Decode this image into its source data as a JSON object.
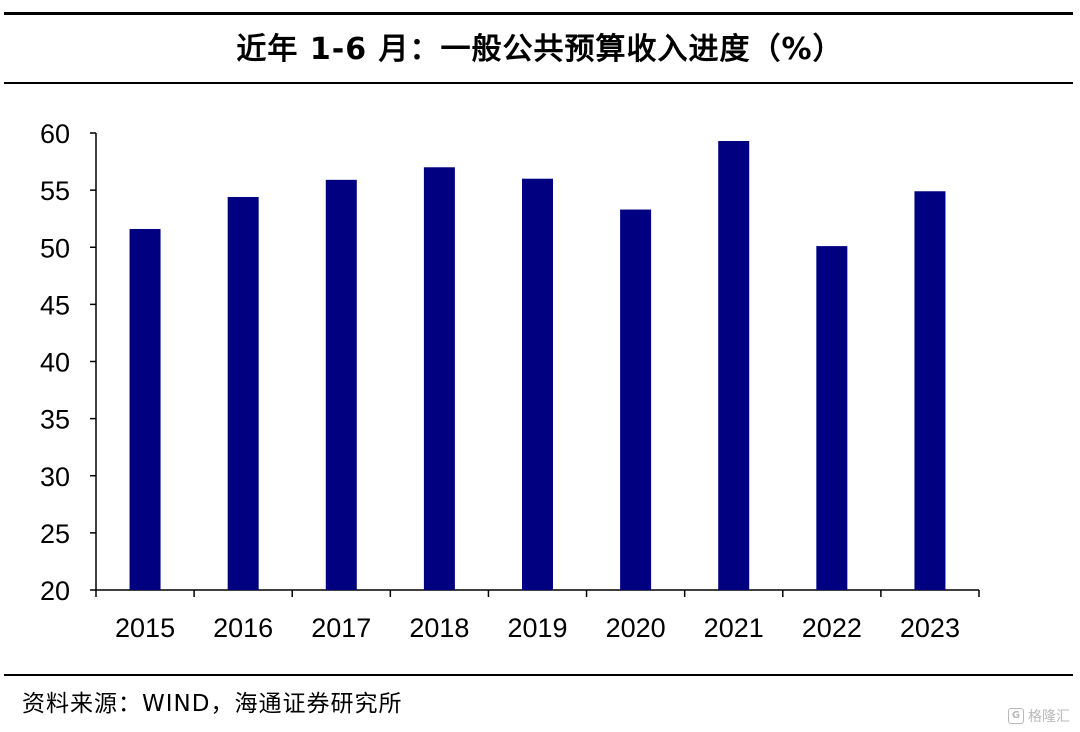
{
  "title": "近年 1-6 月：一般公共预算收入进度（%）",
  "source": "资料来源：WIND，海通证券研究所",
  "watermark": "格隆汇",
  "bar_color": "#000080",
  "chart_data": {
    "type": "bar",
    "title": "近年 1-6 月：一般公共预算收入进度（%）",
    "categories": [
      "2015",
      "2016",
      "2017",
      "2018",
      "2019",
      "2020",
      "2021",
      "2022",
      "2023"
    ],
    "values": [
      51.6,
      54.4,
      55.9,
      57.0,
      56.0,
      53.3,
      59.3,
      50.1,
      54.9
    ],
    "xlabel": "",
    "ylabel": "",
    "ylim": [
      20,
      60
    ],
    "yticks": [
      "20",
      "25",
      "30",
      "35",
      "40",
      "45",
      "50",
      "55",
      "60"
    ],
    "grid": false,
    "legend": "none"
  }
}
